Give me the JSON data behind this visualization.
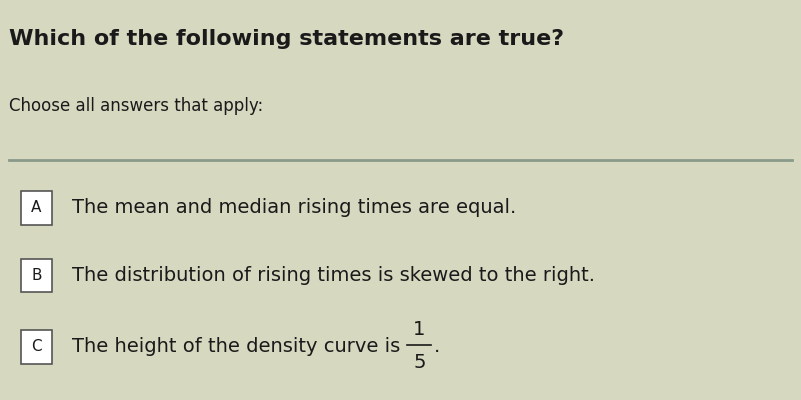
{
  "title": "Which of the following statements are true?",
  "subtitle": "Choose all answers that apply:",
  "background_color": "#d6d8c0",
  "title_fontsize": 16,
  "subtitle_fontsize": 12,
  "separator_color": "#8a9a8a",
  "box_color": "#ffffff",
  "box_border_color": "#555555",
  "text_color": "#1a1a1a",
  "options": [
    {
      "label": "A",
      "text": "The mean and median rising times are equal.",
      "has_fraction": false
    },
    {
      "label": "B",
      "text": "The distribution of rising times is skewed to the right.",
      "has_fraction": false
    },
    {
      "label": "C",
      "text_before": "The height of the density curve is ",
      "fraction_num": "1",
      "fraction_den": "5",
      "has_fraction": true
    }
  ],
  "option_fontsize": 14,
  "label_fontsize": 11
}
